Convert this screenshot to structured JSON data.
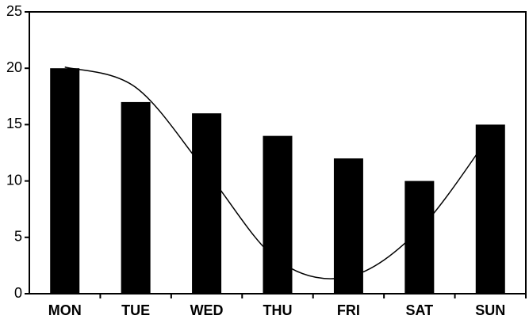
{
  "chart_data": {
    "type": "bar",
    "categories": [
      "MON",
      "TUE",
      "WED",
      "THU",
      "FRI",
      "SAT",
      "SUN"
    ],
    "series": [
      {
        "type": "bar",
        "color": "#000000",
        "values": [
          20,
          17,
          16,
          14,
          12,
          10,
          15
        ]
      },
      {
        "type": "line",
        "color": "#000000",
        "values": [
          20.1,
          18.3,
          10.8,
          3.0,
          1.5,
          5.7,
          14.1
        ]
      }
    ],
    "ylim": [
      0,
      25
    ],
    "yticks": [
      0,
      5,
      10,
      15,
      20,
      25
    ],
    "grid": false
  }
}
